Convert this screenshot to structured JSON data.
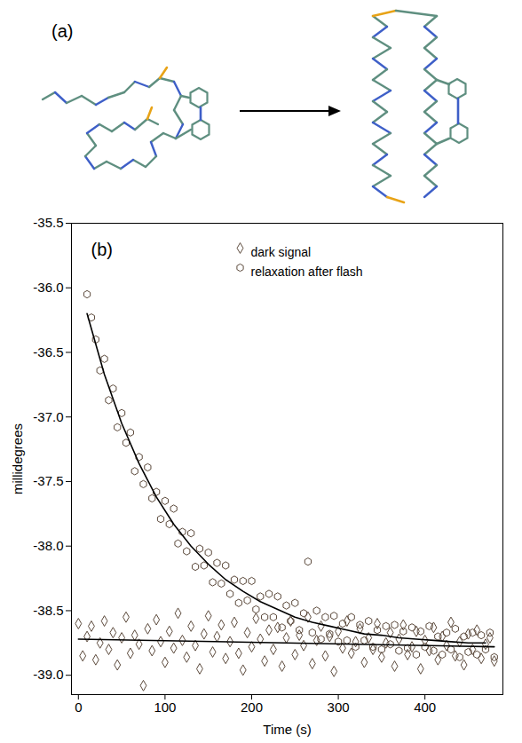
{
  "diagram": {
    "label": "(a)"
  },
  "chart_data": {
    "type": "scatter",
    "panel_label": "(b)",
    "x_label": "Time (s)",
    "y_label": "millidegrees",
    "xlim": [
      -8,
      490
    ],
    "ylim": [
      -39.15,
      -35.5
    ],
    "xticks": [
      0,
      100,
      200,
      300,
      400
    ],
    "yticks": [
      -35.5,
      {
        "value": -36,
        "label": "-36.0"
      },
      -36.5,
      {
        "value": -37,
        "label": "-37.0"
      },
      -37.5,
      {
        "value": -38,
        "label": "-38.0"
      },
      -38.5,
      {
        "value": -39,
        "label": "-39.0"
      }
    ],
    "legend": "top",
    "x": [
      0,
      5,
      10,
      15,
      20,
      25,
      30,
      35,
      40,
      45,
      50,
      55,
      60,
      65,
      70,
      75,
      80,
      85,
      90,
      95,
      100,
      105,
      110,
      115,
      120,
      125,
      130,
      135,
      140,
      145,
      150,
      155,
      160,
      165,
      170,
      175,
      180,
      185,
      190,
      195,
      200,
      205,
      210,
      215,
      220,
      225,
      230,
      235,
      240,
      245,
      250,
      255,
      260,
      265,
      270,
      275,
      280,
      285,
      290,
      295,
      300,
      305,
      310,
      315,
      320,
      325,
      330,
      335,
      340,
      345,
      350,
      355,
      360,
      365,
      370,
      375,
      380,
      385,
      390,
      395,
      400,
      405,
      410,
      415,
      420,
      425,
      430,
      435,
      440,
      445,
      450,
      455,
      460,
      465,
      470,
      475,
      480
    ],
    "series": [
      {
        "name": "dark signal",
        "type": "scatter",
        "marker": "diamond",
        "color": "#5c4a3c",
        "values": [
          -38.6,
          -38.85,
          -38.7,
          -38.62,
          -38.88,
          -38.75,
          -38.58,
          -38.8,
          -38.67,
          -38.92,
          -38.71,
          -38.55,
          -38.83,
          -38.69,
          -38.76,
          -39.08,
          -38.64,
          -38.81,
          -38.57,
          -38.74,
          -38.9,
          -38.66,
          -38.79,
          -38.52,
          -38.73,
          -38.86,
          -38.62,
          -38.77,
          -38.95,
          -38.68,
          -38.54,
          -38.82,
          -38.7,
          -38.61,
          -38.87,
          -38.74,
          -38.59,
          -38.83,
          -38.96,
          -38.67,
          -38.78,
          -38.56,
          -38.72,
          -38.89,
          -38.65,
          -38.8,
          -38.63,
          -38.93,
          -38.71,
          -38.58,
          -38.84,
          -38.69,
          -38.77,
          -38.55,
          -38.91,
          -38.73,
          -38.62,
          -38.85,
          -38.7,
          -38.97,
          -38.66,
          -38.79,
          -38.58,
          -38.83,
          -38.74,
          -38.64,
          -38.9,
          -38.71,
          -38.8,
          -38.6,
          -38.86,
          -38.75,
          -38.67,
          -38.93,
          -38.72,
          -38.61,
          -38.84,
          -38.78,
          -38.66,
          -38.95,
          -38.73,
          -38.81,
          -38.63,
          -38.88,
          -38.7,
          -38.77,
          -38.59,
          -38.85,
          -38.74,
          -38.92,
          -38.68,
          -38.8,
          -38.65,
          -38.87,
          -38.76,
          -38.71,
          -38.89
        ]
      },
      {
        "name": "relaxation after flash",
        "type": "scatter",
        "marker": "hexagon",
        "color": "#5c4a3c",
        "values": [
          null,
          null,
          -36.05,
          -36.23,
          -36.4,
          -36.64,
          -36.55,
          -36.87,
          -36.78,
          -37.08,
          -36.97,
          -37.2,
          -37.12,
          -37.42,
          -37.31,
          -37.52,
          -37.39,
          -37.63,
          -37.58,
          -37.79,
          -37.65,
          -37.83,
          -37.71,
          -37.98,
          -37.89,
          -38.04,
          -37.9,
          -38.16,
          -38.02,
          -38.15,
          -38.05,
          -38.28,
          -38.13,
          -38.29,
          -38.15,
          -38.37,
          -38.26,
          -38.44,
          -38.27,
          -38.42,
          -38.27,
          -38.49,
          -38.39,
          -38.55,
          -38.37,
          -38.55,
          -38.39,
          -38.63,
          -38.46,
          -38.58,
          -38.44,
          -38.65,
          -38.52,
          -38.12,
          -38.67,
          -38.5,
          -38.72,
          -38.55,
          -38.68,
          -38.54,
          -38.74,
          -38.6,
          -38.73,
          -38.55,
          -38.78,
          -38.61,
          -38.73,
          -38.58,
          -38.78,
          -38.65,
          -38.8,
          -38.62,
          -38.76,
          -38.61,
          -38.81,
          -38.66,
          -38.79,
          -38.63,
          -38.84,
          -38.66,
          -38.78,
          -38.62,
          -38.81,
          -38.7,
          -38.84,
          -38.67,
          -38.8,
          -38.64,
          -38.86,
          -38.7,
          -38.82,
          -38.67,
          -38.84,
          -38.69,
          -38.8,
          -38.67,
          -38.86
        ]
      },
      {
        "type": "line",
        "color": "#000000",
        "x": [
          0,
          480
        ],
        "values": [
          -38.72,
          -38.78
        ]
      },
      {
        "type": "line",
        "color": "#000000",
        "x": [
          10,
          30,
          50,
          70,
          90,
          110,
          130,
          150,
          170,
          190,
          210,
          230,
          250,
          270,
          290,
          310,
          330,
          350,
          370,
          390,
          410,
          430,
          450,
          470
        ],
        "values": [
          -36.2,
          -36.67,
          -37.05,
          -37.36,
          -37.62,
          -37.83,
          -38.0,
          -38.14,
          -38.26,
          -38.35,
          -38.43,
          -38.49,
          -38.55,
          -38.59,
          -38.62,
          -38.65,
          -38.68,
          -38.69,
          -38.71,
          -38.72,
          -38.73,
          -38.74,
          -38.75,
          -38.75
        ]
      }
    ]
  }
}
